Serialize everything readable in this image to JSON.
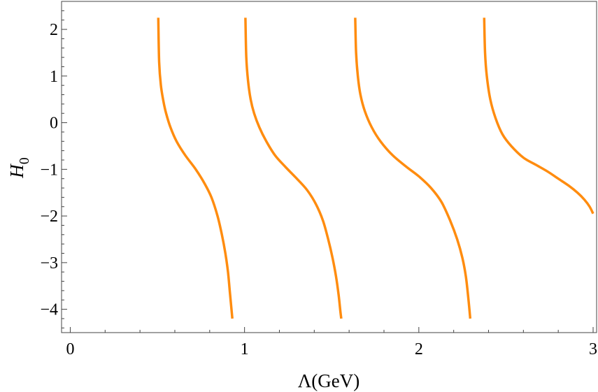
{
  "chart_data": {
    "type": "line",
    "title": "",
    "xlabel": "Λ(GeV)",
    "ylabel": "H",
    "ylabel_subscript": "0",
    "xlim": [
      -0.05,
      3.02
    ],
    "ylim": [
      -4.5,
      2.6
    ],
    "x_ticks": [
      0,
      1,
      2,
      3
    ],
    "x_tick_labels": [
      "0",
      "1",
      "2",
      "3"
    ],
    "y_ticks": [
      2,
      1,
      0,
      -1,
      -2,
      -3,
      -4
    ],
    "y_tick_labels": [
      "2",
      "1",
      "0",
      "−1",
      "−2",
      "−3",
      "−4"
    ],
    "grid": false,
    "color": "#ff8c0f",
    "series": [
      {
        "x": [
          0.505,
          0.51,
          0.52,
          0.535,
          0.55,
          0.575,
          0.61,
          0.66,
          0.72,
          0.77,
          0.81,
          0.845,
          0.87,
          0.89,
          0.905,
          0.915,
          0.925,
          0.93
        ],
        "y": [
          2.25,
          1.3,
          0.8,
          0.45,
          0.2,
          -0.1,
          -0.4,
          -0.7,
          -1.0,
          -1.3,
          -1.6,
          -2.0,
          -2.4,
          -2.8,
          -3.2,
          -3.6,
          -4.0,
          -4.2
        ]
      },
      {
        "x": [
          1.005,
          1.01,
          1.02,
          1.035,
          1.055,
          1.085,
          1.125,
          1.175,
          1.235,
          1.3,
          1.36,
          1.41,
          1.45,
          1.48,
          1.505,
          1.525,
          1.54,
          1.55,
          1.555
        ],
        "y": [
          2.25,
          1.4,
          0.9,
          0.5,
          0.2,
          -0.1,
          -0.4,
          -0.7,
          -0.95,
          -1.2,
          -1.45,
          -1.75,
          -2.1,
          -2.5,
          -2.9,
          -3.3,
          -3.7,
          -4.05,
          -4.2
        ]
      },
      {
        "x": [
          1.635,
          1.64,
          1.65,
          1.665,
          1.69,
          1.73,
          1.78,
          1.85,
          1.93,
          2.0,
          2.07,
          2.13,
          2.18,
          2.22,
          2.25,
          2.27,
          2.285,
          2.295
        ],
        "y": [
          2.25,
          1.5,
          1.0,
          0.6,
          0.25,
          -0.1,
          -0.4,
          -0.7,
          -0.95,
          -1.15,
          -1.4,
          -1.7,
          -2.1,
          -2.5,
          -2.9,
          -3.3,
          -3.8,
          -4.2
        ]
      },
      {
        "x": [
          2.375,
          2.38,
          2.39,
          2.41,
          2.44,
          2.48,
          2.53,
          2.6,
          2.67,
          2.74,
          2.8,
          2.86,
          2.91,
          2.95,
          2.98,
          3.0
        ],
        "y": [
          2.25,
          1.5,
          1.0,
          0.5,
          0.1,
          -0.25,
          -0.5,
          -0.75,
          -0.9,
          -1.05,
          -1.2,
          -1.35,
          -1.5,
          -1.65,
          -1.8,
          -1.95
        ]
      }
    ]
  }
}
